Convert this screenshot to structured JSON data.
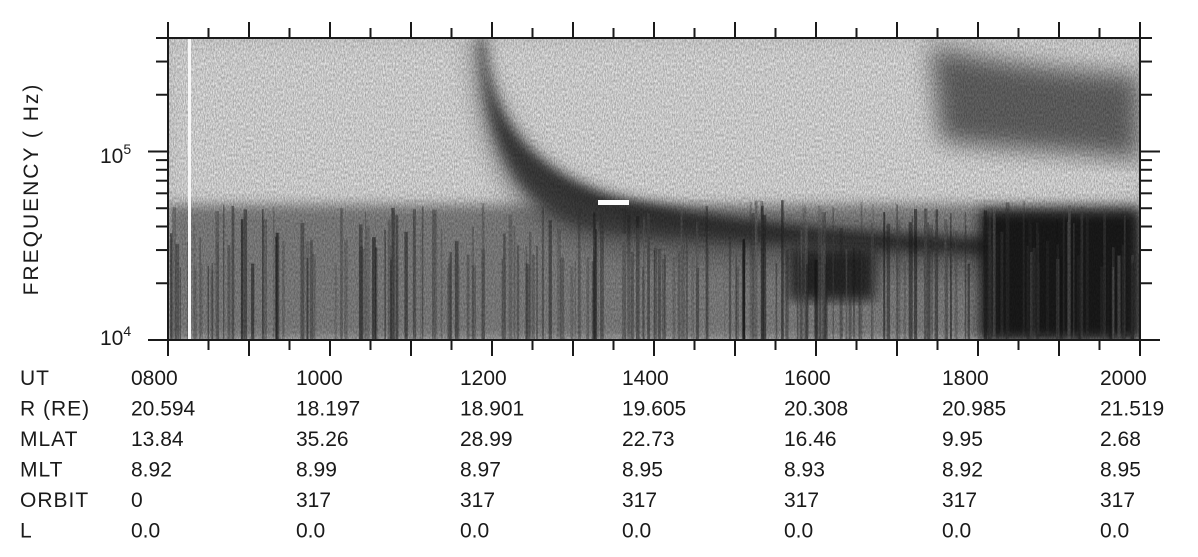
{
  "chart_data": {
    "type": "heatmap",
    "ylabel": "FREQUENCY ( Hz)",
    "y_scale": "log",
    "ylim": [
      10000,
      400000
    ],
    "yticks": [
      {
        "base": "10",
        "exp": "5",
        "value": 100000
      },
      {
        "base": "10",
        "exp": "4",
        "value": 10000
      }
    ],
    "x_range": [
      "0800",
      "2000"
    ],
    "colors": {
      "ink": "#1a1a1a",
      "background": "#ffffff",
      "plot_background": "#d8d8d8"
    },
    "table": {
      "rows": [
        {
          "label": "UT",
          "values": [
            "0800",
            "1000",
            "1200",
            "1400",
            "1600",
            "1800",
            "2000"
          ]
        },
        {
          "label": "R (RE)",
          "values": [
            "20.594",
            "18.197",
            "18.901",
            "19.605",
            "20.308",
            "20.985",
            "21.519"
          ]
        },
        {
          "label": "MLAT",
          "values": [
            "13.84",
            "35.26",
            "28.99",
            "22.73",
            "16.46",
            "9.95",
            "2.68"
          ]
        },
        {
          "label": "MLT",
          "values": [
            "8.92",
            "8.99",
            "8.97",
            "8.95",
            "8.93",
            "8.92",
            "8.95"
          ]
        },
        {
          "label": "ORBIT",
          "values": [
            "0",
            "317",
            "317",
            "317",
            "317",
            "317",
            "317"
          ]
        },
        {
          "label": "L",
          "values": [
            "0.0",
            "0.0",
            "0.0",
            "0.0",
            "0.0",
            "0.0",
            "0.0"
          ]
        }
      ]
    }
  }
}
